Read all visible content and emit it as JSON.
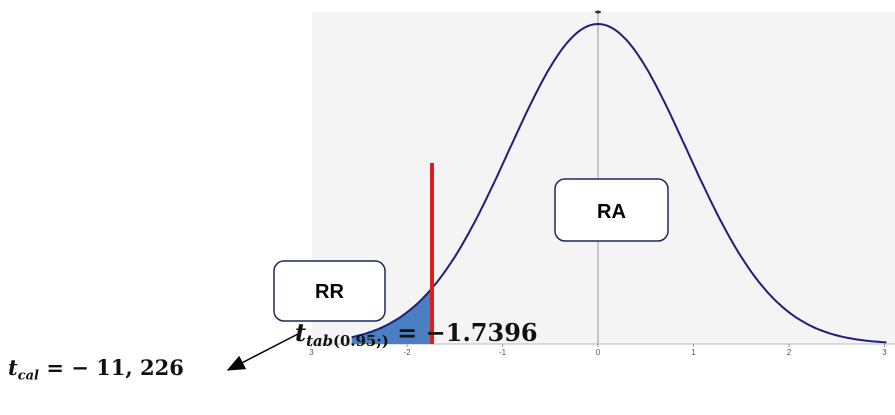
{
  "diagram": {
    "region_labels": {
      "rejection": "RR",
      "acceptance": "RA"
    },
    "x_ticks": [
      "3",
      "-2",
      "-1",
      "0",
      "1",
      "2",
      "3"
    ],
    "critical_value": -1.7396,
    "colors": {
      "curve": "#1f1f7a",
      "rejection_fill": "#4a7fc1",
      "critical_line": "#e31b1b",
      "background": "#f4f4f4",
      "box_border": "#1a2a5a"
    }
  },
  "equations": {
    "t_tab": {
      "symbol": "t",
      "subscript_main": "tab",
      "subscript_args": "(0.95;)",
      "equals": " = ",
      "value": "−1.7396"
    },
    "t_cal": {
      "symbol": "t",
      "subscript_main": "cal",
      "equals": " = ",
      "value": "− 11, 226"
    }
  }
}
